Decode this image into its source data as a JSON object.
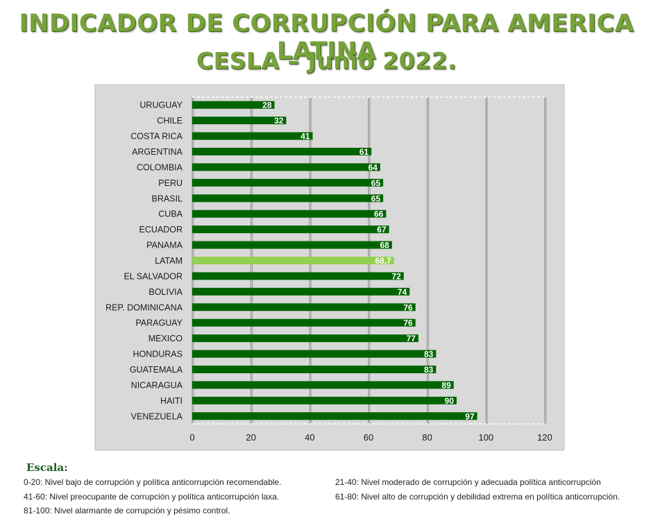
{
  "header": {
    "title_line1": "INDICADOR DE CORRUPCIÓN PARA AMERICA LATINA",
    "title_line2": "CESLA – Junio 2022."
  },
  "chart_data": {
    "type": "bar",
    "orientation": "horizontal",
    "categories": [
      "URUGUAY",
      "CHILE",
      "COSTA RICA",
      "ARGENTINA",
      "COLOMBIA",
      "PERU",
      "BRASIL",
      "CUBA",
      "ECUADOR",
      "PANAMA",
      "LATAM",
      "EL SALVADOR",
      "BOLIVIA",
      "REP. DOMINICANA",
      "PARAGUAY",
      "MEXICO",
      "HONDURAS",
      "GUATEMALA",
      "NICARAGUA",
      "HAITI",
      "VENEZUELA"
    ],
    "values": [
      28,
      32,
      41,
      61,
      64,
      65,
      65,
      66,
      67,
      68,
      68.7,
      72,
      74,
      76,
      76,
      77,
      83,
      83,
      89,
      90,
      97
    ],
    "data_labels": [
      "28",
      "32",
      "41",
      "61",
      "64",
      "65",
      "65",
      "66",
      "67",
      "68",
      "68,7",
      "72",
      "74",
      "76",
      "76",
      "77",
      "83",
      "83",
      "89",
      "90",
      "97"
    ],
    "highlight_category": "LATAM",
    "colors": {
      "bar": "#006400",
      "highlight": "#92d050",
      "plot_bg": "#d9d9d9",
      "label": "#ffffff"
    },
    "xlim": [
      0,
      120
    ],
    "xticks": [
      0,
      20,
      40,
      60,
      80,
      100,
      120
    ],
    "grid": true,
    "title": "",
    "xlabel": "",
    "ylabel": ""
  },
  "legend": {
    "heading": "Escala:",
    "items": [
      "0-20: Nivel bajo de corrupción y política anticorrupción recomendable.",
      "21-40: Nivel moderado de corrupción y adecuada política anticorrupción",
      "41-60: Nivel preocupante de corrupción y política anticorrupción laxa.",
      "61-80: Nivel alto de corrupción y debilidad extrema en política anticorrupción.",
      "81-100: Nivel alarmante de corrupción y pésimo control."
    ]
  }
}
